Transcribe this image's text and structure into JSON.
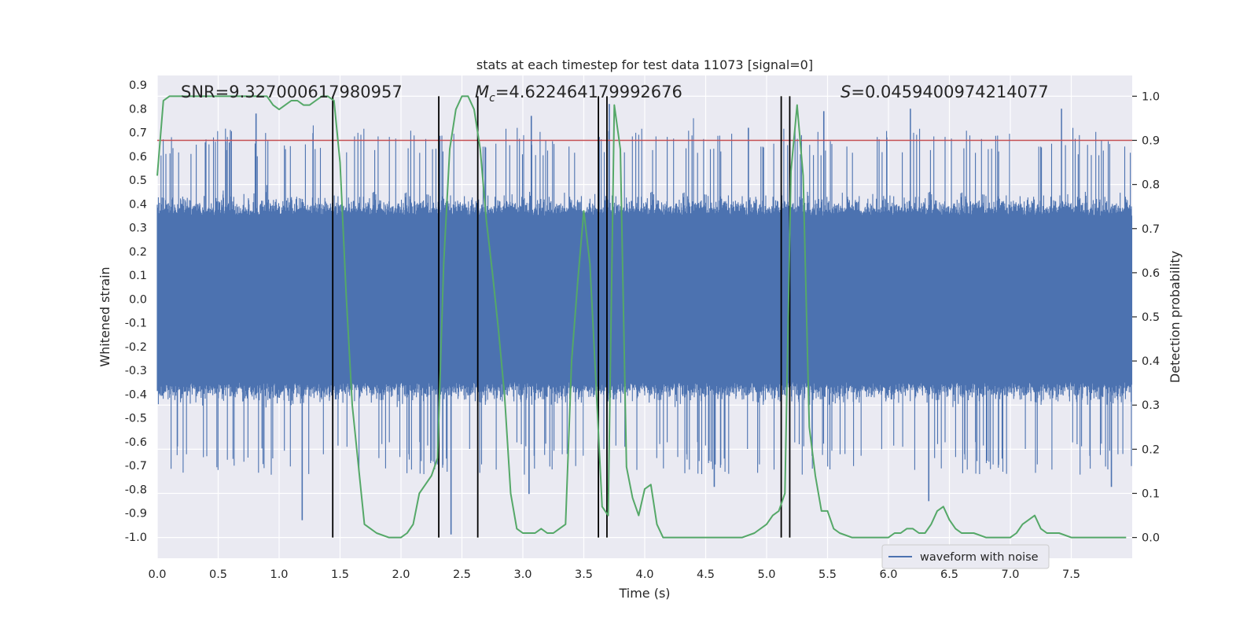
{
  "chart_data": {
    "type": "line",
    "title": "stats at each timestep for test data 11073 [signal=0]",
    "xlabel": "Time (s)",
    "ylabel": "Whitened strain",
    "y2label": "Detection probability",
    "xlim": [
      0.0,
      8.0
    ],
    "ylim": [
      -1.09,
      0.94
    ],
    "y2lim": [
      -0.047,
      1.047
    ],
    "xticks": [
      0.0,
      0.5,
      1.0,
      1.5,
      2.0,
      2.5,
      3.0,
      3.5,
      4.0,
      4.5,
      5.0,
      5.5,
      6.0,
      6.5,
      7.0,
      7.5
    ],
    "yticks": [
      -1.0,
      -0.9,
      -0.8,
      -0.7,
      -0.6,
      -0.5,
      -0.4,
      -0.3,
      -0.2,
      -0.1,
      0.0,
      0.1,
      0.2,
      0.3,
      0.4,
      0.5,
      0.6,
      0.7,
      0.8,
      0.9
    ],
    "y2ticks": [
      0.0,
      0.1,
      0.2,
      0.3,
      0.4,
      0.5,
      0.6,
      0.7,
      0.8,
      0.9,
      1.0
    ],
    "annotations": {
      "snr": "SNR=9.327000617980957",
      "mc_symbol": "M",
      "mc_sub": "c",
      "mc_value": "=4.622464179992676",
      "s_symbol": "S",
      "s_value": "=0.0459400974214077"
    },
    "legend": {
      "label": "waveform with noise",
      "placement": "lower-right"
    },
    "threshold": {
      "y2": 0.9,
      "color": "#c44e52"
    },
    "vertical_lines": [
      1.44,
      2.31,
      2.63,
      3.62,
      3.69,
      5.12,
      5.19
    ],
    "waveform": {
      "name": "waveform with noise",
      "color": "#4c72b0",
      "duration_s": 8.0,
      "envelope": {
        "core_min": -0.35,
        "core_max": 0.35,
        "typical_peak": 0.6,
        "extreme_max": 0.84,
        "extreme_min": -0.96
      },
      "notable_peaks": [
        [
          0.81,
          0.78
        ],
        [
          1.28,
          0.73
        ],
        [
          3.07,
          0.77
        ],
        [
          3.71,
          0.82
        ],
        [
          4.4,
          0.76
        ],
        [
          4.85,
          0.72
        ],
        [
          5.47,
          0.79
        ],
        [
          6.18,
          0.8
        ],
        [
          7.42,
          0.8
        ]
      ],
      "notable_troughs": [
        [
          1.19,
          -0.93
        ],
        [
          2.41,
          -0.99
        ],
        [
          3.05,
          -0.82
        ],
        [
          4.57,
          -0.79
        ],
        [
          6.33,
          -0.85
        ],
        [
          7.83,
          -0.79
        ]
      ]
    },
    "series": [
      {
        "name": "detection probability",
        "axis": "y2",
        "color": "#55a868",
        "x": [
          0.0,
          0.05,
          0.1,
          0.2,
          0.3,
          0.4,
          0.5,
          0.6,
          0.7,
          0.8,
          0.9,
          0.95,
          1.0,
          1.05,
          1.1,
          1.15,
          1.2,
          1.25,
          1.3,
          1.35,
          1.4,
          1.45,
          1.5,
          1.55,
          1.6,
          1.7,
          1.75,
          1.8,
          1.9,
          2.0,
          2.05,
          2.1,
          2.15,
          2.2,
          2.25,
          2.3,
          2.35,
          2.4,
          2.45,
          2.5,
          2.55,
          2.6,
          2.65,
          2.7,
          2.75,
          2.8,
          2.85,
          2.9,
          2.95,
          3.0,
          3.05,
          3.1,
          3.15,
          3.2,
          3.25,
          3.3,
          3.35,
          3.4,
          3.45,
          3.5,
          3.55,
          3.6,
          3.65,
          3.7,
          3.75,
          3.8,
          3.85,
          3.9,
          3.95,
          4.0,
          4.05,
          4.1,
          4.15,
          4.2,
          4.3,
          4.4,
          4.5,
          4.6,
          4.7,
          4.8,
          4.9,
          5.0,
          5.05,
          5.1,
          5.15,
          5.2,
          5.25,
          5.3,
          5.35,
          5.4,
          5.45,
          5.5,
          5.55,
          5.6,
          5.7,
          5.8,
          5.9,
          6.0,
          6.05,
          6.1,
          6.15,
          6.2,
          6.25,
          6.3,
          6.35,
          6.4,
          6.45,
          6.5,
          6.55,
          6.6,
          6.7,
          6.8,
          6.9,
          7.0,
          7.05,
          7.1,
          7.15,
          7.2,
          7.25,
          7.3,
          7.35,
          7.4,
          7.5,
          7.6,
          7.7,
          7.8,
          7.85,
          7.9,
          7.95
        ],
        "values": [
          0.82,
          0.99,
          1.0,
          1.0,
          1.0,
          1.0,
          1.0,
          1.0,
          1.0,
          1.0,
          1.0,
          0.98,
          0.97,
          0.98,
          0.99,
          0.99,
          0.98,
          0.98,
          0.99,
          1.0,
          1.0,
          0.99,
          0.85,
          0.55,
          0.3,
          0.03,
          0.02,
          0.01,
          0.0,
          0.0,
          0.01,
          0.03,
          0.1,
          0.12,
          0.14,
          0.18,
          0.62,
          0.88,
          0.97,
          1.0,
          1.0,
          0.97,
          0.88,
          0.72,
          0.6,
          0.47,
          0.32,
          0.1,
          0.02,
          0.01,
          0.01,
          0.01,
          0.02,
          0.01,
          0.01,
          0.02,
          0.03,
          0.4,
          0.58,
          0.74,
          0.62,
          0.35,
          0.07,
          0.05,
          0.98,
          0.88,
          0.16,
          0.09,
          0.05,
          0.11,
          0.12,
          0.03,
          0.0,
          0.0,
          0.0,
          0.0,
          0.0,
          0.0,
          0.0,
          0.0,
          0.01,
          0.03,
          0.05,
          0.06,
          0.1,
          0.83,
          0.98,
          0.82,
          0.25,
          0.14,
          0.06,
          0.06,
          0.02,
          0.01,
          0.0,
          0.0,
          0.0,
          0.0,
          0.01,
          0.01,
          0.02,
          0.02,
          0.01,
          0.01,
          0.03,
          0.06,
          0.07,
          0.04,
          0.02,
          0.01,
          0.01,
          0.0,
          0.0,
          0.0,
          0.01,
          0.03,
          0.04,
          0.05,
          0.02,
          0.01,
          0.01,
          0.01,
          0.0,
          0.0,
          0.0,
          0.0,
          0.0,
          0.0,
          0.0
        ]
      }
    ]
  }
}
